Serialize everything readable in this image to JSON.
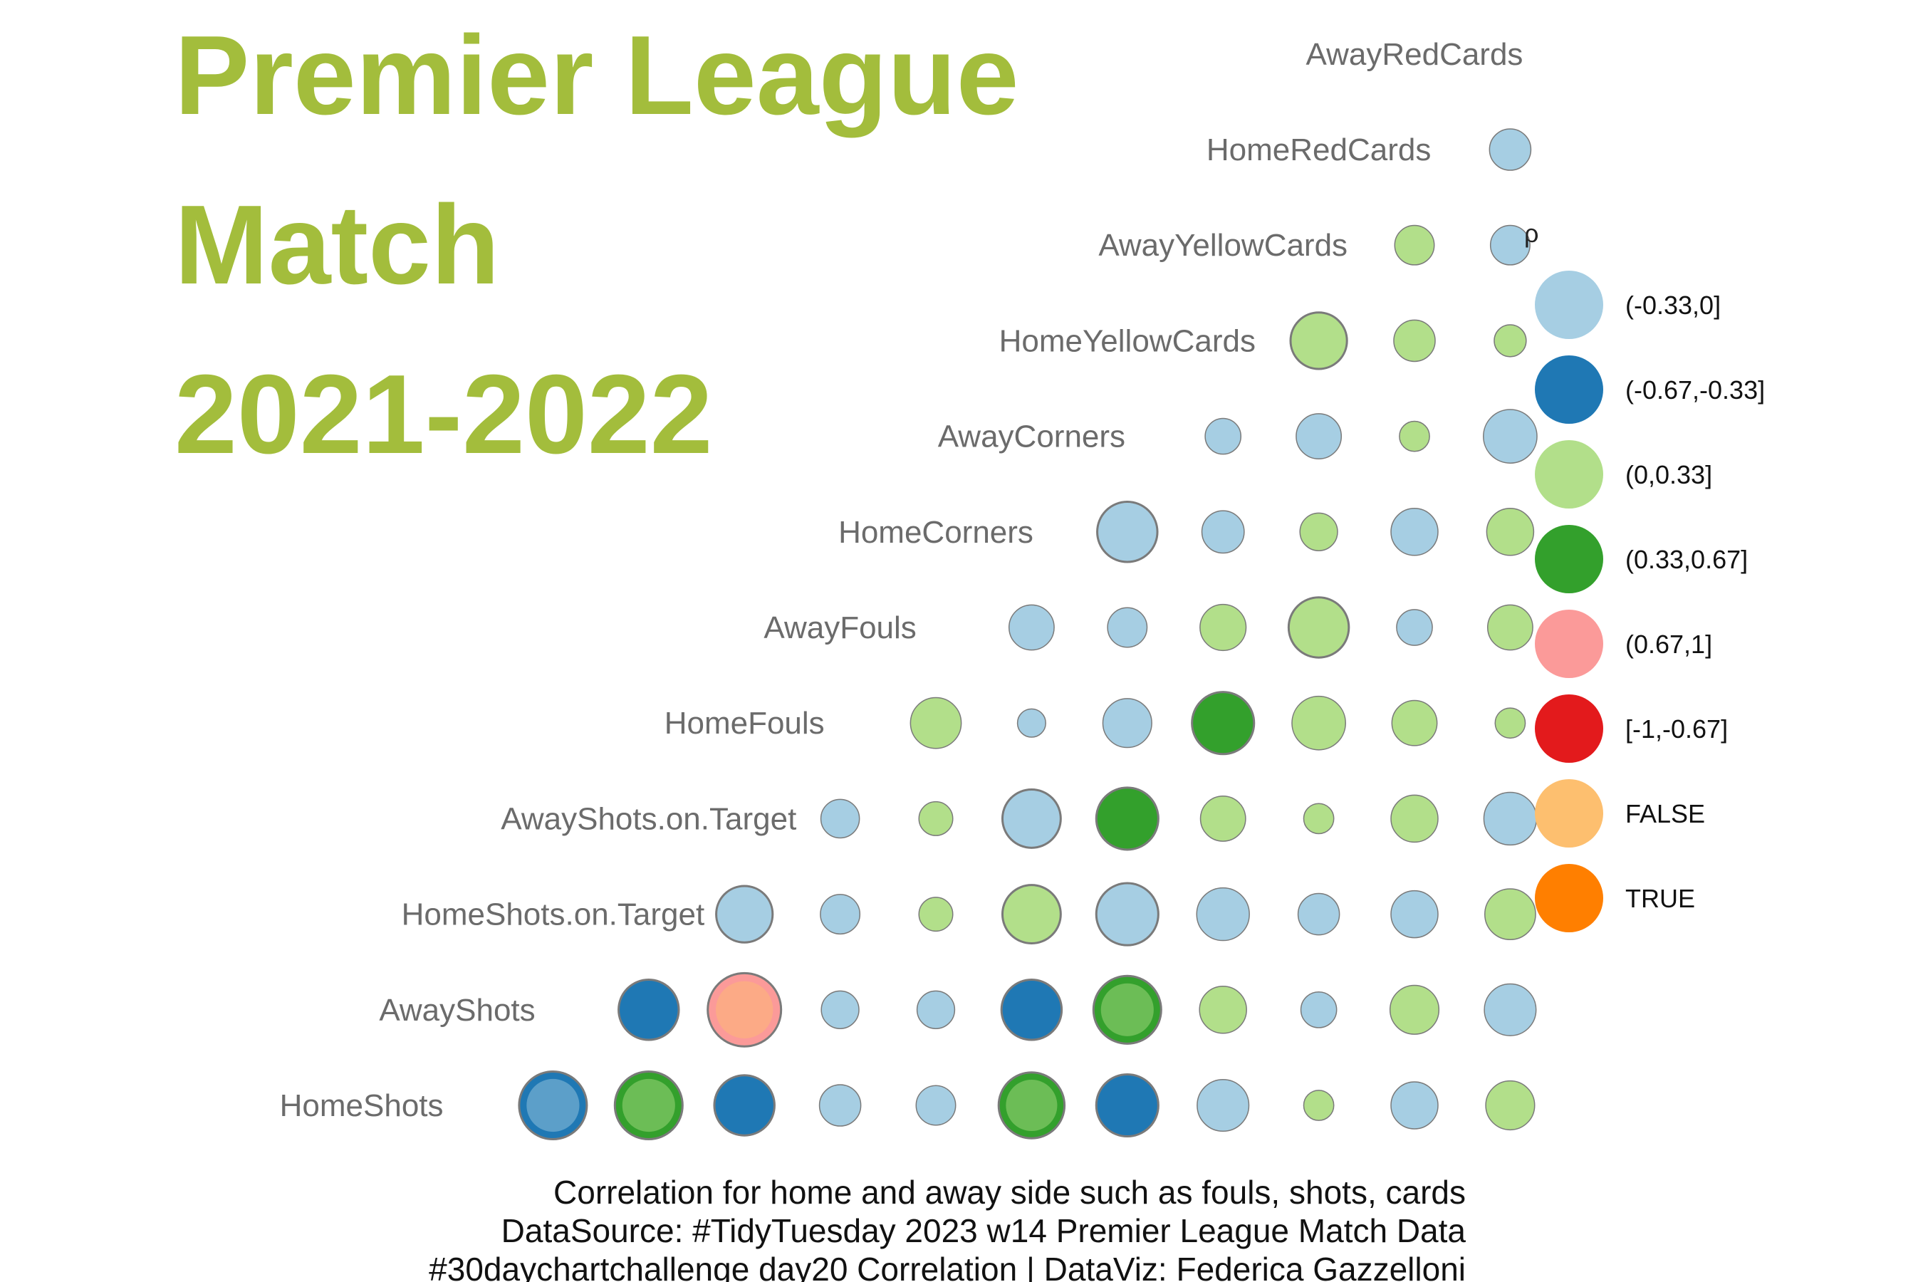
{
  "title_lines": [
    "Premier League",
    "Match",
    "2021-2022"
  ],
  "caption_lines": [
    "Correlation for home and away side such as fouls, shots, cards",
    "DataSource: #TidyTuesday 2023 w14 Premier League Match Data",
    "#30daychartchallenge day20 Correlation | DataViz: Federica Gazzelloni"
  ],
  "colors": {
    "title": "#a3bd3c",
    "label": "#6b6b6b",
    "circle_stroke": "#7a7a7a"
  },
  "chart_data": {
    "type": "correlation-bubble-matrix",
    "variables": [
      "HomeShots",
      "AwayShots",
      "HomeShots.on.Target",
      "AwayShots.on.Target",
      "HomeFouls",
      "AwayFouls",
      "HomeCorners",
      "AwayCorners",
      "HomeYellowCards",
      "AwayYellowCards",
      "HomeRedCards",
      "AwayRedCards"
    ],
    "legend": {
      "title": "ρ",
      "items": [
        {
          "label": "(-0.33,0]",
          "color": "#a6cee3"
        },
        {
          "label": "(-0.67,-0.33]",
          "color": "#1f78b4"
        },
        {
          "label": "(0,0.33]",
          "color": "#b2df8a"
        },
        {
          "label": "(0.33,0.67]",
          "color": "#33a02c"
        },
        {
          "label": "(0.67,1]",
          "color": "#fb9a99"
        },
        {
          "label": "[-1,-0.67]",
          "color": "#e31a1c"
        },
        {
          "label": "FALSE",
          "color": "#fdbf6f"
        },
        {
          "label": "TRUE",
          "color": "#ff7f00"
        }
      ]
    },
    "cells": [
      {
        "row": "HomeShots",
        "col": 1,
        "cat": "(-0.67,-0.33]",
        "size": 0.72,
        "overlay": "#a6cee3"
      },
      {
        "row": "HomeShots",
        "col": 2,
        "cat": "(0.33,0.67]",
        "size": 0.72,
        "overlay": "#b2df8a"
      },
      {
        "row": "HomeShots",
        "col": 3,
        "cat": "(-0.67,-0.33]",
        "size": 0.64
      },
      {
        "row": "HomeShots",
        "col": 4,
        "cat": "(-0.33,0]",
        "size": 0.44
      },
      {
        "row": "HomeShots",
        "col": 5,
        "cat": "(-0.33,0]",
        "size": 0.42
      },
      {
        "row": "HomeShots",
        "col": 6,
        "cat": "(0.33,0.67]",
        "size": 0.7,
        "overlay": "#b2df8a"
      },
      {
        "row": "HomeShots",
        "col": 7,
        "cat": "(-0.67,-0.33]",
        "size": 0.66
      },
      {
        "row": "HomeShots",
        "col": 8,
        "cat": "(-0.33,0]",
        "size": 0.55
      },
      {
        "row": "HomeShots",
        "col": 9,
        "cat": "(0,0.33]",
        "size": 0.32
      },
      {
        "row": "HomeShots",
        "col": 10,
        "cat": "(-0.33,0]",
        "size": 0.5
      },
      {
        "row": "HomeShots",
        "col": 11,
        "cat": "(0,0.33]",
        "size": 0.52
      },
      {
        "row": "AwayShots",
        "col": 2,
        "cat": "(-0.67,-0.33]",
        "size": 0.64
      },
      {
        "row": "AwayShots",
        "col": 3,
        "cat": "(0.67,1]",
        "size": 0.78,
        "overlay": "#fdbf6f"
      },
      {
        "row": "AwayShots",
        "col": 4,
        "cat": "(-0.33,0]",
        "size": 0.4
      },
      {
        "row": "AwayShots",
        "col": 5,
        "cat": "(-0.33,0]",
        "size": 0.4
      },
      {
        "row": "AwayShots",
        "col": 6,
        "cat": "(-0.67,-0.33]",
        "size": 0.64
      },
      {
        "row": "AwayShots",
        "col": 7,
        "cat": "(0.33,0.67]",
        "size": 0.72,
        "overlay": "#b2df8a"
      },
      {
        "row": "AwayShots",
        "col": 8,
        "cat": "(0,0.33]",
        "size": 0.5
      },
      {
        "row": "AwayShots",
        "col": 9,
        "cat": "(-0.33,0]",
        "size": 0.38
      },
      {
        "row": "AwayShots",
        "col": 10,
        "cat": "(0,0.33]",
        "size": 0.52
      },
      {
        "row": "AwayShots",
        "col": 11,
        "cat": "(-0.33,0]",
        "size": 0.55
      },
      {
        "row": "HomeShots.on.Target",
        "col": 3,
        "cat": "(-0.33,0]",
        "size": 0.6
      },
      {
        "row": "HomeShots.on.Target",
        "col": 4,
        "cat": "(-0.33,0]",
        "size": 0.42
      },
      {
        "row": "HomeShots.on.Target",
        "col": 5,
        "cat": "(0,0.33]",
        "size": 0.36
      },
      {
        "row": "HomeShots.on.Target",
        "col": 6,
        "cat": "(0,0.33]",
        "size": 0.62
      },
      {
        "row": "HomeShots.on.Target",
        "col": 7,
        "cat": "(-0.33,0]",
        "size": 0.66
      },
      {
        "row": "HomeShots.on.Target",
        "col": 8,
        "cat": "(-0.33,0]",
        "size": 0.56
      },
      {
        "row": "HomeShots.on.Target",
        "col": 9,
        "cat": "(-0.33,0]",
        "size": 0.44
      },
      {
        "row": "HomeShots.on.Target",
        "col": 10,
        "cat": "(-0.33,0]",
        "size": 0.5
      },
      {
        "row": "HomeShots.on.Target",
        "col": 11,
        "cat": "(0,0.33]",
        "size": 0.54
      },
      {
        "row": "AwayShots.on.Target",
        "col": 4,
        "cat": "(-0.33,0]",
        "size": 0.41
      },
      {
        "row": "AwayShots.on.Target",
        "col": 5,
        "cat": "(0,0.33]",
        "size": 0.36
      },
      {
        "row": "AwayShots.on.Target",
        "col": 6,
        "cat": "(-0.33,0]",
        "size": 0.62
      },
      {
        "row": "AwayShots.on.Target",
        "col": 7,
        "cat": "(0.33,0.67]",
        "size": 0.66
      },
      {
        "row": "AwayShots.on.Target",
        "col": 8,
        "cat": "(0,0.33]",
        "size": 0.48
      },
      {
        "row": "AwayShots.on.Target",
        "col": 9,
        "cat": "(0,0.33]",
        "size": 0.32
      },
      {
        "row": "AwayShots.on.Target",
        "col": 10,
        "cat": "(0,0.33]",
        "size": 0.5
      },
      {
        "row": "AwayShots.on.Target",
        "col": 11,
        "cat": "(-0.33,0]",
        "size": 0.56
      },
      {
        "row": "HomeFouls",
        "col": 5,
        "cat": "(0,0.33]",
        "size": 0.54
      },
      {
        "row": "HomeFouls",
        "col": 6,
        "cat": "(-0.33,0]",
        "size": 0.3
      },
      {
        "row": "HomeFouls",
        "col": 7,
        "cat": "(-0.33,0]",
        "size": 0.52
      },
      {
        "row": "HomeFouls",
        "col": 8,
        "cat": "(0.33,0.67]",
        "size": 0.66
      },
      {
        "row": "HomeFouls",
        "col": 9,
        "cat": "(0,0.33]",
        "size": 0.57
      },
      {
        "row": "HomeFouls",
        "col": 10,
        "cat": "(0,0.33]",
        "size": 0.48
      },
      {
        "row": "HomeFouls",
        "col": 11,
        "cat": "(0,0.33]",
        "size": 0.32
      },
      {
        "row": "AwayFouls",
        "col": 6,
        "cat": "(-0.33,0]",
        "size": 0.48
      },
      {
        "row": "AwayFouls",
        "col": 7,
        "cat": "(-0.33,0]",
        "size": 0.42
      },
      {
        "row": "AwayFouls",
        "col": 8,
        "cat": "(0,0.33]",
        "size": 0.49
      },
      {
        "row": "AwayFouls",
        "col": 9,
        "cat": "(0,0.33]",
        "size": 0.64
      },
      {
        "row": "AwayFouls",
        "col": 10,
        "cat": "(-0.33,0]",
        "size": 0.38
      },
      {
        "row": "AwayFouls",
        "col": 11,
        "cat": "(0,0.33]",
        "size": 0.48
      },
      {
        "row": "HomeCorners",
        "col": 7,
        "cat": "(-0.33,0]",
        "size": 0.64
      },
      {
        "row": "HomeCorners",
        "col": 8,
        "cat": "(-0.33,0]",
        "size": 0.45
      },
      {
        "row": "HomeCorners",
        "col": 9,
        "cat": "(0,0.33]",
        "size": 0.4
      },
      {
        "row": "HomeCorners",
        "col": 10,
        "cat": "(-0.33,0]",
        "size": 0.5
      },
      {
        "row": "HomeCorners",
        "col": 11,
        "cat": "(0,0.33]",
        "size": 0.5
      },
      {
        "row": "AwayCorners",
        "col": 8,
        "cat": "(-0.33,0]",
        "size": 0.38
      },
      {
        "row": "AwayCorners",
        "col": 9,
        "cat": "(-0.33,0]",
        "size": 0.48
      },
      {
        "row": "AwayCorners",
        "col": 10,
        "cat": "(0,0.33]",
        "size": 0.32
      },
      {
        "row": "AwayCorners",
        "col": 11,
        "cat": "(-0.33,0]",
        "size": 0.57
      },
      {
        "row": "HomeYellowCards",
        "col": 9,
        "cat": "(0,0.33]",
        "size": 0.6
      },
      {
        "row": "HomeYellowCards",
        "col": 10,
        "cat": "(0,0.33]",
        "size": 0.44
      },
      {
        "row": "HomeYellowCards",
        "col": 11,
        "cat": "(0,0.33]",
        "size": 0.34
      },
      {
        "row": "AwayYellowCards",
        "col": 10,
        "cat": "(0,0.33]",
        "size": 0.42
      },
      {
        "row": "AwayYellowCards",
        "col": 11,
        "cat": "(-0.33,0]",
        "size": 0.42
      },
      {
        "row": "HomeRedCards",
        "col": 11,
        "cat": "(-0.33,0]",
        "size": 0.44
      }
    ]
  }
}
